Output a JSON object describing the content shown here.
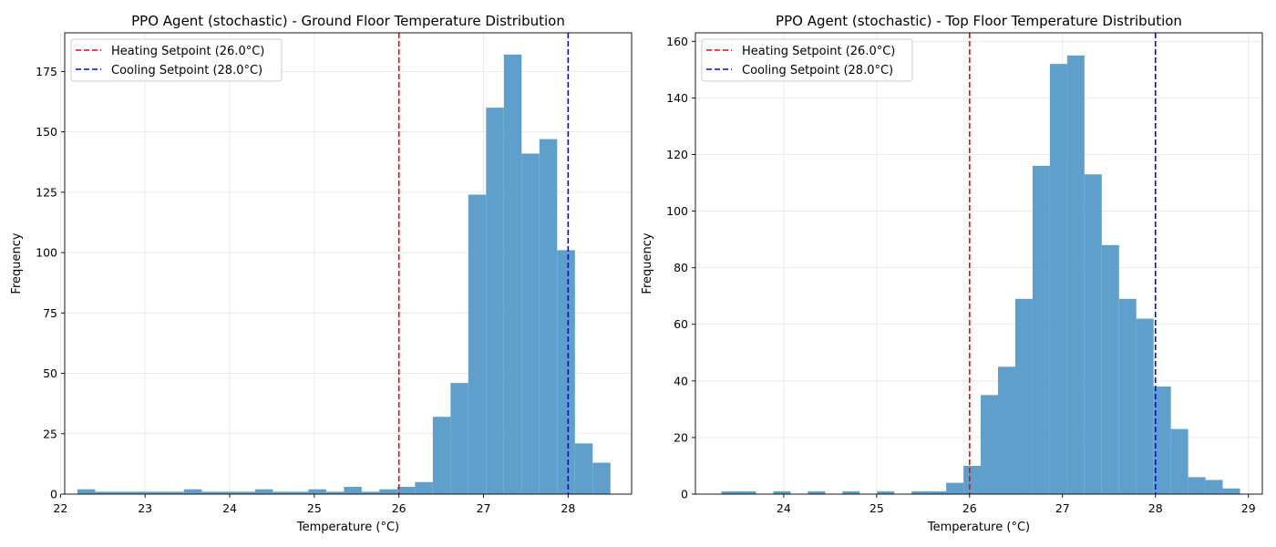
{
  "colors": {
    "bar_fill": "#5f9fcc",
    "heating_line": "#ff0000",
    "cooling_line": "#0000ff",
    "grid": "#e6e6e6",
    "axes": "#000000",
    "legend_border": "#cccccc"
  },
  "chart_data": [
    {
      "type": "bar",
      "subtype": "histogram",
      "title": "PPO Agent (stochastic) - Ground Floor Temperature Distribution",
      "xlabel": "Temperature (°C)",
      "ylabel": "Frequency",
      "xlim": [
        22.05,
        28.75
      ],
      "ylim": [
        0,
        191
      ],
      "xticks": [
        22,
        23,
        24,
        25,
        26,
        27,
        28
      ],
      "xtick_labels": [
        "22",
        "23",
        "24",
        "25",
        "26",
        "27",
        "28"
      ],
      "yticks": [
        0,
        25,
        50,
        75,
        100,
        125,
        150,
        175
      ],
      "ytick_labels": [
        "0",
        "25",
        "50",
        "75",
        "100",
        "125",
        "150",
        "175"
      ],
      "grid": true,
      "legend_position": "upper-left",
      "bins": [
        22.2,
        22.41,
        22.62,
        22.83,
        23.04,
        23.25,
        23.46,
        23.67,
        23.88,
        24.09,
        24.3,
        24.51,
        24.72,
        24.93,
        25.14,
        25.35,
        25.56,
        25.77,
        25.98,
        26.19,
        26.4,
        26.61,
        26.82,
        27.03,
        27.24,
        27.45,
        27.66,
        27.87,
        28.08,
        28.29,
        28.5
      ],
      "counts": [
        2,
        1,
        1,
        1,
        1,
        1,
        2,
        1,
        1,
        1,
        2,
        1,
        1,
        2,
        1,
        3,
        1,
        2,
        3,
        5,
        32,
        46,
        124,
        160,
        182,
        141,
        147,
        101,
        21,
        13
      ],
      "reference_lines": [
        {
          "name": "Heating Setpoint (26.0°C)",
          "x": 26.0,
          "color": "#ff0000",
          "style": "dashed"
        },
        {
          "name": "Cooling Setpoint (28.0°C)",
          "x": 28.0,
          "color": "#0000ff",
          "style": "dashed"
        }
      ]
    },
    {
      "type": "bar",
      "subtype": "histogram",
      "title": "PPO Agent (stochastic) - Top Floor Temperature Distribution",
      "xlabel": "Temperature (°C)",
      "ylabel": "Frequency",
      "xlim": [
        23.05,
        29.15
      ],
      "ylim": [
        0,
        163
      ],
      "xticks": [
        24,
        25,
        26,
        27,
        28,
        29
      ],
      "xtick_labels": [
        "24",
        "25",
        "26",
        "27",
        "28",
        "29"
      ],
      "yticks": [
        0,
        20,
        40,
        60,
        80,
        100,
        120,
        140,
        160
      ],
      "ytick_labels": [
        "0",
        "20",
        "40",
        "60",
        "80",
        "100",
        "120",
        "140",
        "160"
      ],
      "grid": true,
      "legend_position": "upper-left",
      "bins": [
        23.33,
        23.516,
        23.702,
        23.888,
        24.074,
        24.26,
        24.446,
        24.632,
        24.818,
        25.004,
        25.19,
        25.376,
        25.562,
        25.748,
        25.934,
        26.12,
        26.306,
        26.492,
        26.678,
        26.864,
        27.05,
        27.236,
        27.422,
        27.608,
        27.794,
        27.98,
        28.166,
        28.352,
        28.538,
        28.724,
        28.91
      ],
      "counts": [
        1,
        1,
        0,
        1,
        0,
        1,
        0,
        1,
        0,
        1,
        0,
        1,
        1,
        4,
        10,
        35,
        45,
        69,
        116,
        152,
        155,
        113,
        88,
        69,
        62,
        38,
        23,
        6,
        5,
        2
      ],
      "reference_lines": [
        {
          "name": "Heating Setpoint (26.0°C)",
          "x": 26.0,
          "color": "#ff0000",
          "style": "dashed"
        },
        {
          "name": "Cooling Setpoint (28.0°C)",
          "x": 28.0,
          "color": "#0000ff",
          "style": "dashed"
        }
      ]
    }
  ]
}
